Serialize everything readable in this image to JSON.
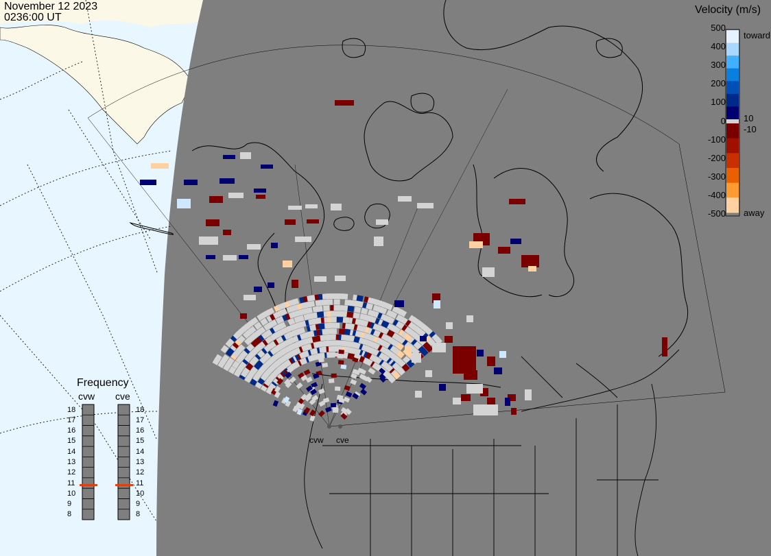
{
  "header": {
    "date": "November 12 2023",
    "time": "0236:00 UT"
  },
  "legend": {
    "title": "Velocity (m/s)",
    "ticks_left": [
      "500",
      "400",
      "300",
      "200",
      "100",
      "0",
      "-100",
      "-200",
      "-300",
      "-400",
      "-500"
    ],
    "label_toward": "toward",
    "label_away": "away",
    "label_pos10": "10",
    "label_neg10": "-10",
    "colors": {
      "toward": [
        "#e6f2ff",
        "#a8d8ff",
        "#40b0ff",
        "#0a7fe0",
        "#0050b8",
        "#002a8a",
        "#000070"
      ],
      "away": [
        "#7a0000",
        "#a01000",
        "#c83000",
        "#e86000",
        "#ff9a30",
        "#ffd0a0"
      ],
      "low": "#d4d4d4"
    }
  },
  "frequency": {
    "title": "Frequency",
    "radars": [
      "cvw",
      "cve"
    ],
    "scale": [
      "18",
      "17",
      "16",
      "15",
      "14",
      "13",
      "12",
      "11",
      "10",
      "9",
      "8"
    ],
    "values_mhz": [
      10.8,
      10.8
    ]
  },
  "sites": {
    "cvw": "cvw",
    "cve": "cve"
  },
  "colors": {
    "ocean": "#e8f6ff",
    "night_land": "#7f7f7f",
    "day_land": "#fbf8e8",
    "low_velocity": "#d4d4d4"
  }
}
